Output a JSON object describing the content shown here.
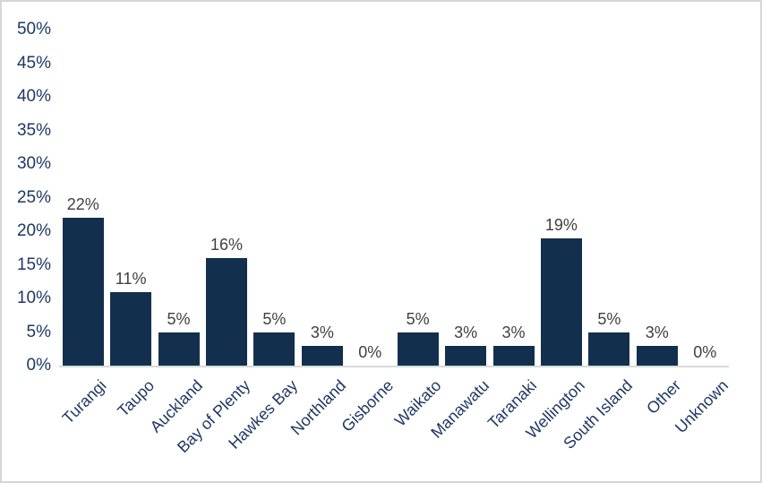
{
  "chart_data": {
    "type": "bar",
    "title": "",
    "xlabel": "",
    "ylabel": "",
    "categories": [
      "Turangi",
      "Taupo",
      "Auckland",
      "Bay of Plenty",
      "Hawkes Bay",
      "Northland",
      "Gisborne",
      "Waikato",
      "Manawatu",
      "Taranaki",
      "Wellington",
      "South Island",
      "Other",
      "Unknown"
    ],
    "values": [
      22,
      11,
      5,
      16,
      5,
      3,
      0,
      5,
      3,
      3,
      19,
      5,
      3,
      0
    ],
    "data_labels": [
      "22%",
      "11%",
      "5%",
      "16%",
      "5%",
      "3%",
      "0%",
      "5%",
      "3%",
      "3%",
      "19%",
      "5%",
      "3%",
      "0%"
    ],
    "ylim": [
      0,
      50
    ],
    "ytick_step": 5,
    "ytick_labels": [
      "0%",
      "5%",
      "10%",
      "15%",
      "20%",
      "25%",
      "30%",
      "35%",
      "40%",
      "45%",
      "50%"
    ],
    "grid": false,
    "legend": "none",
    "colors": {
      "bar": "#12304e",
      "axis_labels": "#1f3864",
      "data_labels": "#404040",
      "axis_line": "#d9d9d9",
      "border": "#d6d6d6",
      "background": "#ffffff"
    }
  }
}
